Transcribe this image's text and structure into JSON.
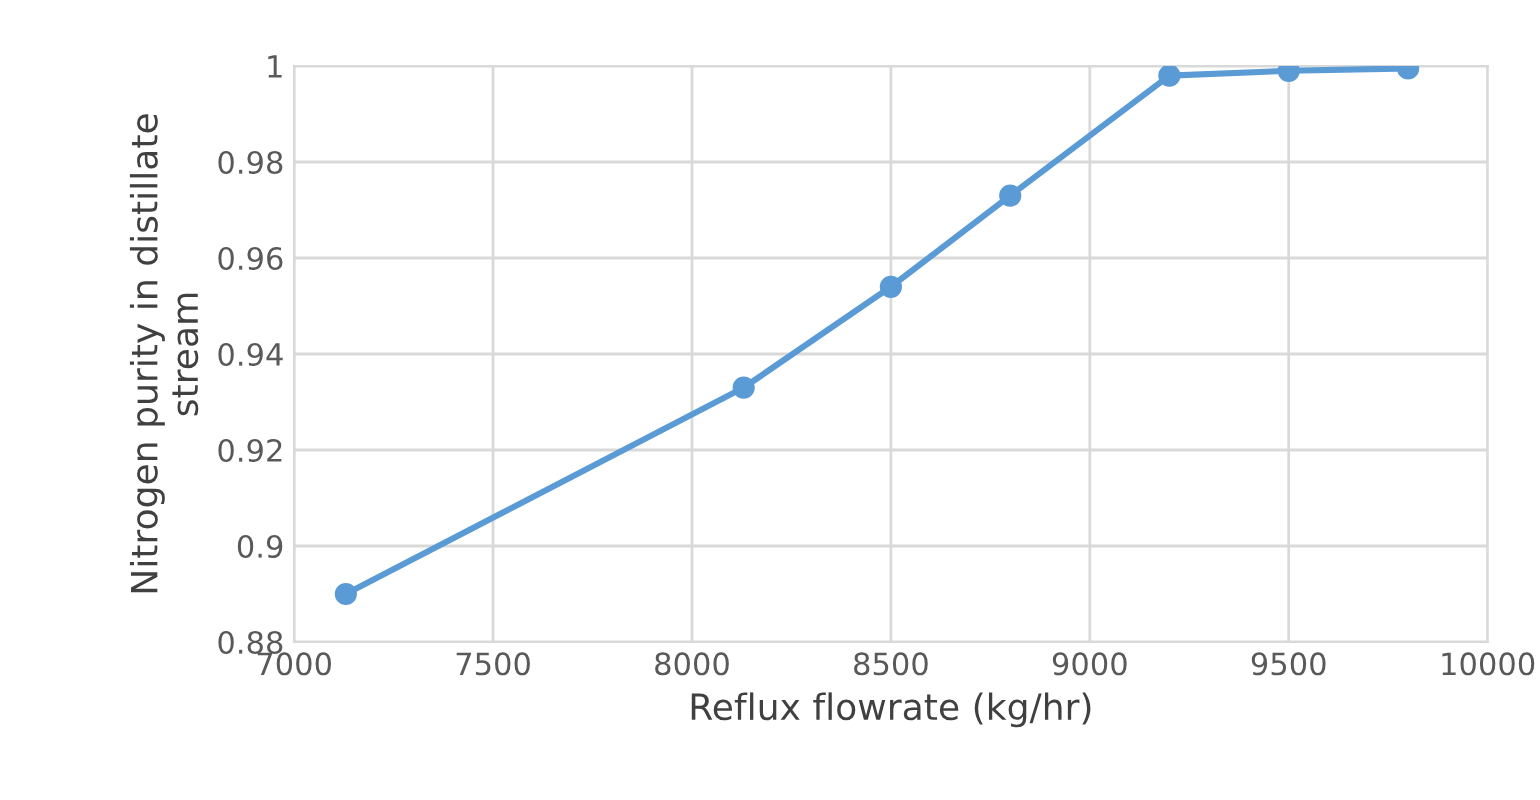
{
  "chart_data": {
    "type": "line",
    "xlabel": "Reflux flowrate (kg/hr)",
    "ylabel": "Nitrogen purity in distillate\nstream",
    "x": [
      7130,
      8130,
      8500,
      8800,
      9200,
      9500,
      9800
    ],
    "series": [
      {
        "color": "#5b9bd5",
        "values": [
          0.89,
          0.933,
          0.954,
          0.973,
          0.998,
          0.999,
          0.9995
        ]
      }
    ],
    "xlim": [
      7000,
      10000
    ],
    "xticks": [
      7000,
      7500,
      8000,
      8500,
      9000,
      9500,
      10000
    ],
    "ylim": [
      0.88,
      1
    ],
    "yticks": [
      0.88,
      0.9,
      0.92,
      0.94,
      0.96,
      0.98,
      1
    ],
    "grid": true,
    "marker": "circle",
    "line_style": "solid"
  }
}
